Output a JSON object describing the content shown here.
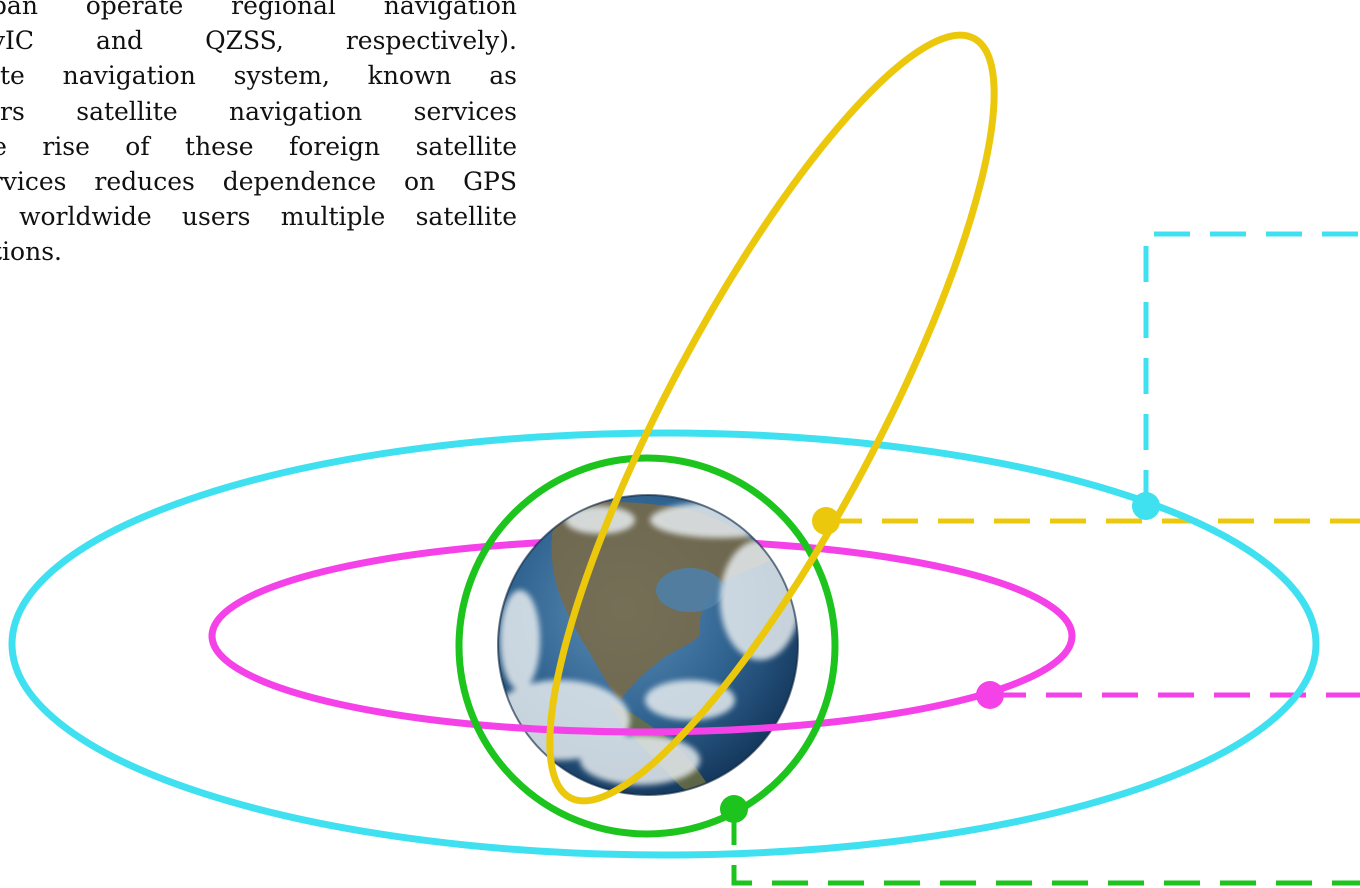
{
  "paragraph": {
    "lines": [
      "apan operate regional navigation",
      "avIC and QZSS, respectively).",
      "llite navigation system, known as",
      "fers satellite navigation services",
      "he rise of these foreign satellite",
      "ervices reduces dependence on GPS",
      "s worldwide users multiple satellite",
      "ptions."
    ]
  },
  "orbits": [
    {
      "id": "outer-ellipse",
      "color": "#3fe0f0"
    },
    {
      "id": "inner-ellipse",
      "color": "#f542e8"
    },
    {
      "id": "circular-orbit",
      "color": "#1dc41d"
    },
    {
      "id": "inclined-ellipse",
      "color": "#ecc80c"
    }
  ],
  "earth": {
    "ocean": "#2a5d8c",
    "land": "#7a6a45",
    "cloud": "#e6ecef"
  }
}
